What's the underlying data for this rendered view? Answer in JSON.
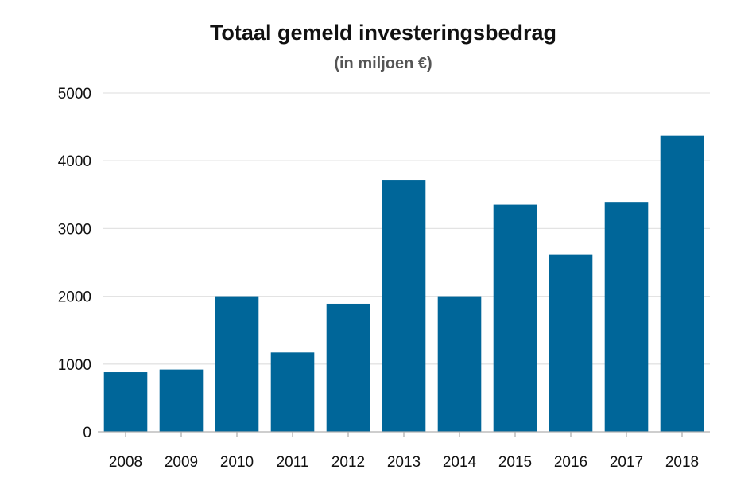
{
  "chart_data": {
    "type": "bar",
    "title": "Totaal gemeld investeringsbedrag",
    "subtitle": "(in miljoen €)",
    "xlabel": "",
    "ylabel": "",
    "categories": [
      "2008",
      "2009",
      "2010",
      "2011",
      "2012",
      "2013",
      "2014",
      "2015",
      "2016",
      "2017",
      "2018"
    ],
    "values": [
      880,
      920,
      2000,
      1170,
      1890,
      3720,
      2000,
      3350,
      2610,
      3390,
      4370
    ],
    "ylim": [
      0,
      5000
    ],
    "yticks": [
      0,
      1000,
      2000,
      3000,
      4000,
      5000
    ],
    "grid": true,
    "legend": "none",
    "bar_color": "#006699"
  }
}
